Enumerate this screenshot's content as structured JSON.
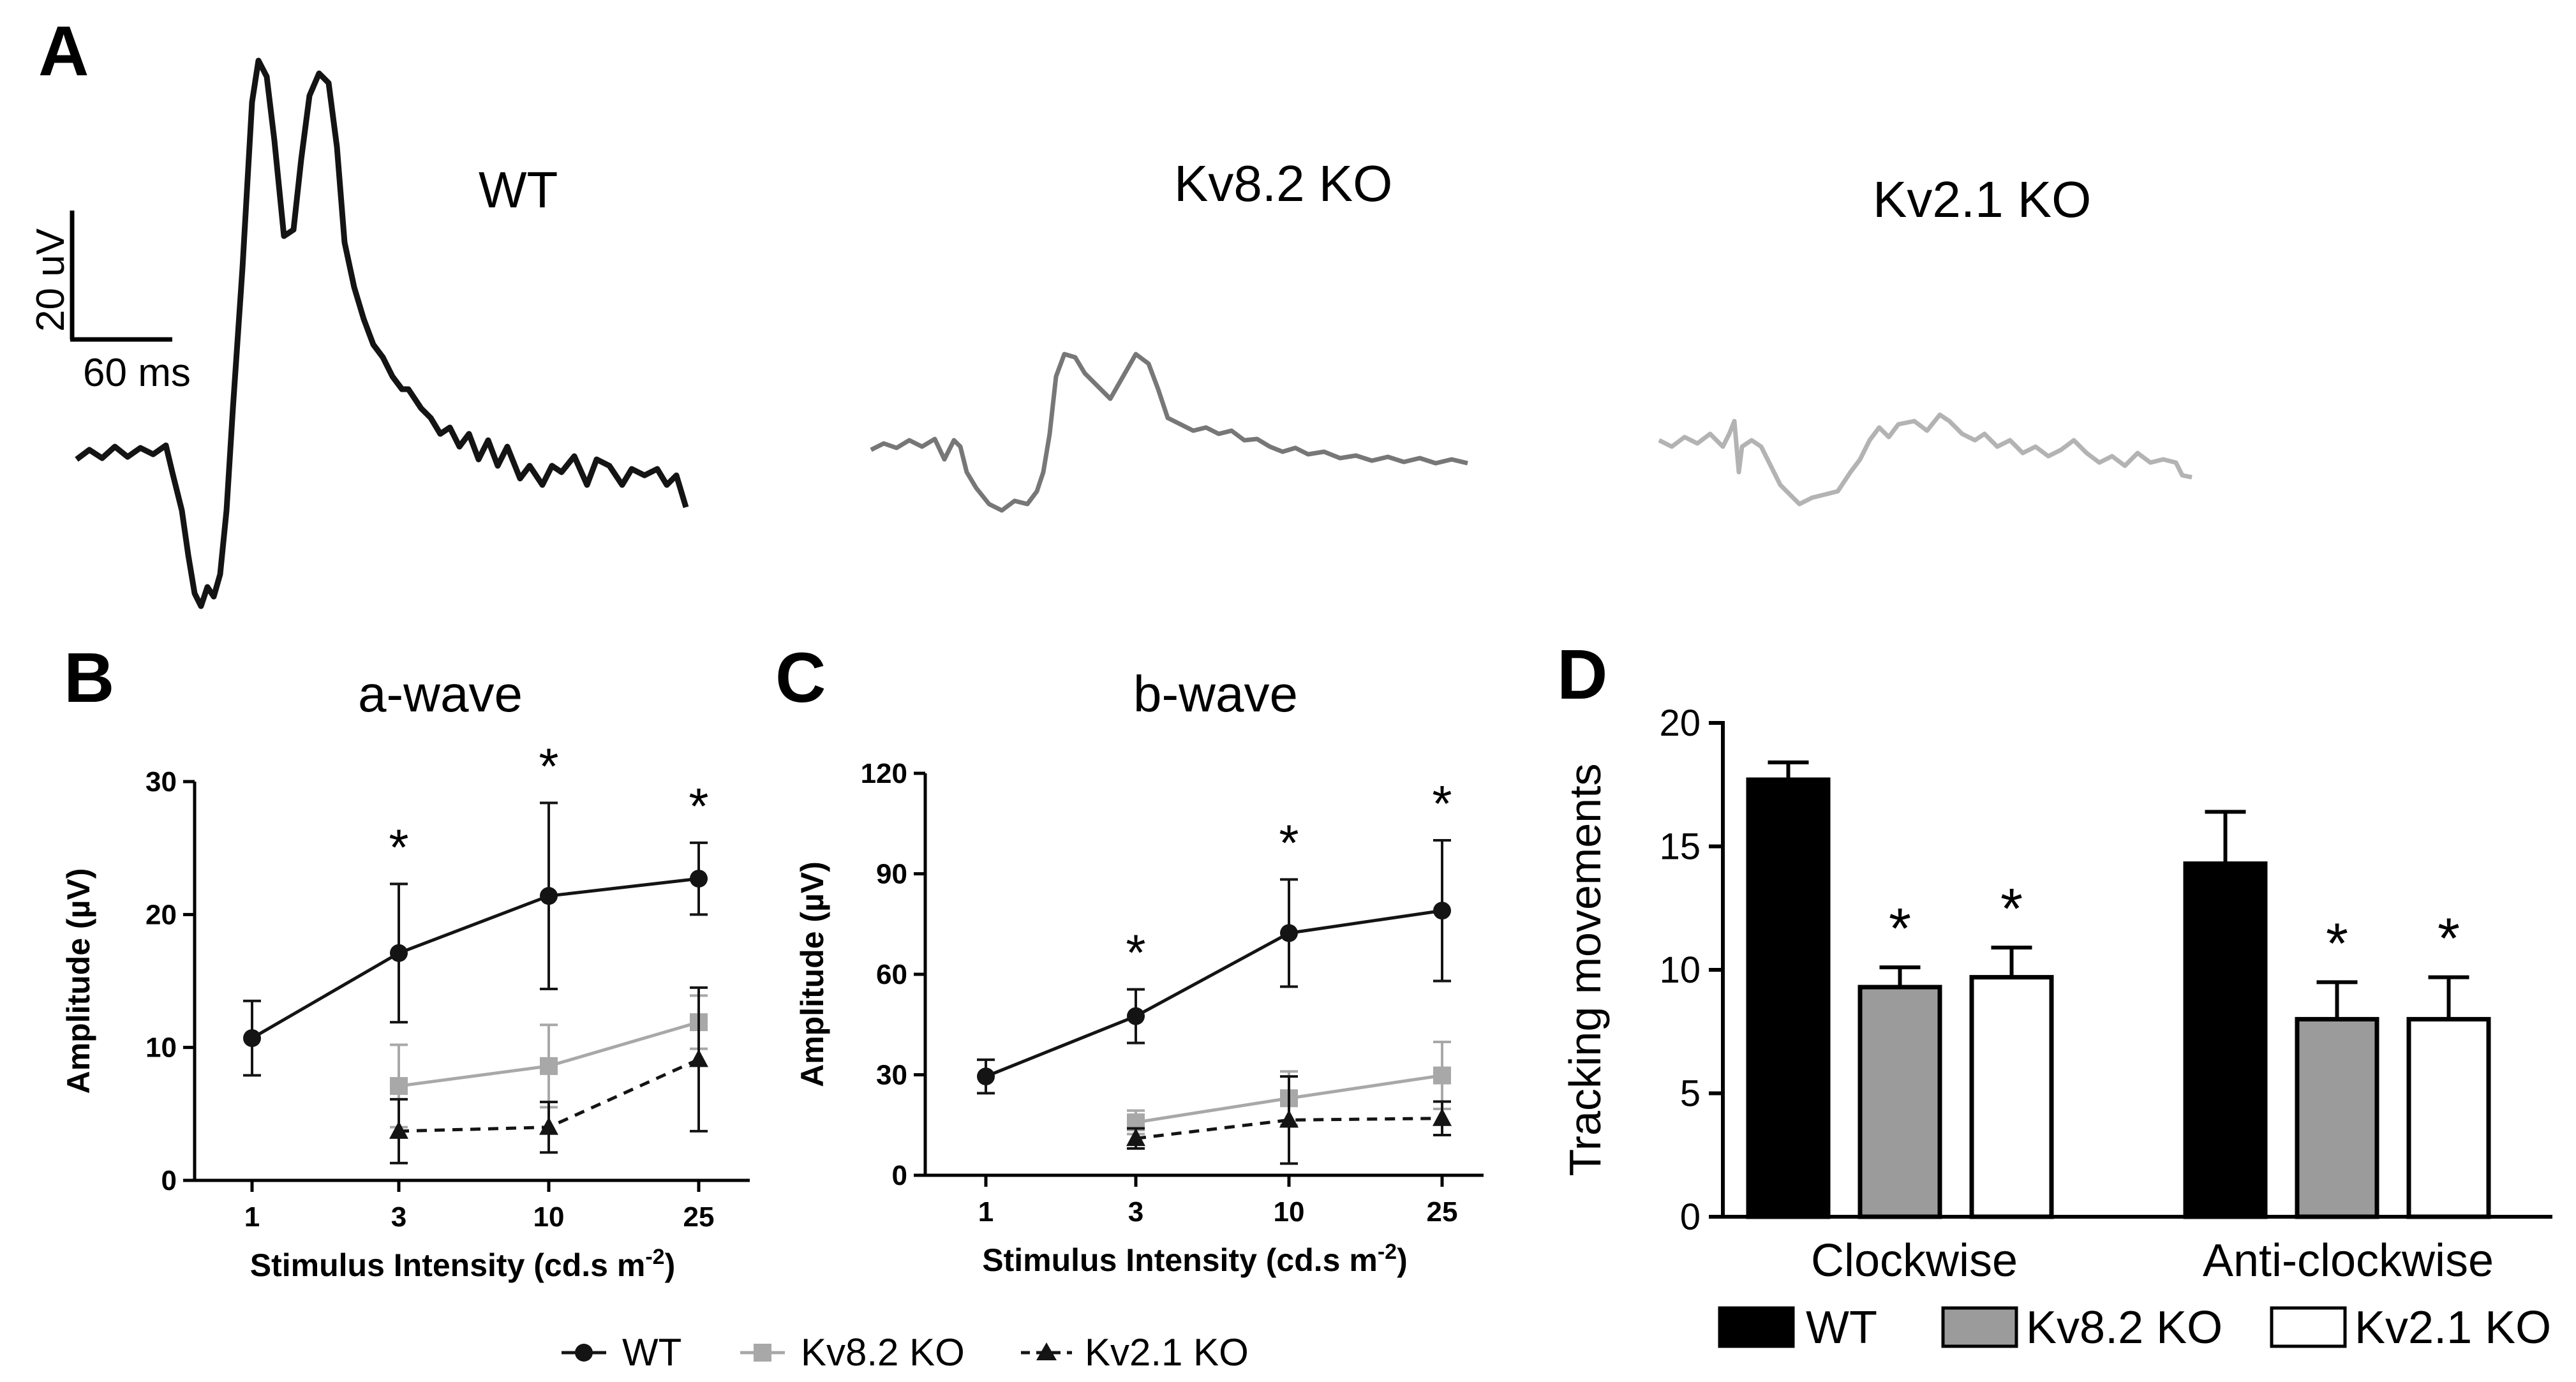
{
  "panel_labels": {
    "a": "A",
    "b": "B",
    "c": "C",
    "d": "D"
  },
  "colors": {
    "wt": "#141414",
    "kv82": "#a8a8a8",
    "kv21": "#141414",
    "ercg_kv82": "#777777",
    "ercg_kv21": "#b3b3b3",
    "bar_wt": "#000000",
    "bar_kv82": "#9b9b9b",
    "bar_kv21": "#ffffff"
  },
  "traces": {
    "scale_y_label": "20 uV",
    "scale_x_label": "60 ms",
    "wt_label": "WT",
    "kv82_label": "Kv8.2 KO",
    "kv21_label": "Kv2.1 KO"
  },
  "legend": {
    "wt": "WT",
    "kv82": "Kv8.2 KO",
    "kv21": "Kv2.1 KO"
  },
  "chart_data": [
    {
      "id": "a-wave",
      "type": "line",
      "title": "a-wave",
      "xlabel": "Stimulus Intensity (cd.s m",
      "xlabel_sup": "-2",
      "xlabel_end": ")",
      "ylabel": "Amplitude (µV)",
      "categories": [
        "1",
        "3",
        "10",
        "25"
      ],
      "yticks": [
        "0",
        "10",
        "20",
        "30"
      ],
      "ylim": [
        0,
        30
      ],
      "series": [
        {
          "name": "WT",
          "values": [
            10.7,
            17.1,
            21.4,
            22.7
          ],
          "errors": [
            2.8,
            5.2,
            7.0,
            2.7
          ]
        },
        {
          "name": "Kv8.2 KO",
          "values": [
            null,
            7.1,
            8.6,
            11.9
          ],
          "errors": [
            null,
            3.1,
            3.1,
            2.0
          ]
        },
        {
          "name": "Kv2.1 KO",
          "values": [
            null,
            3.7,
            4.0,
            9.1
          ],
          "errors": [
            null,
            2.4,
            1.9,
            5.4
          ]
        }
      ],
      "significance": [
        {
          "index": 1,
          "label": "*"
        },
        {
          "index": 2,
          "label": "*"
        },
        {
          "index": 3,
          "label": "*"
        }
      ]
    },
    {
      "id": "b-wave",
      "type": "line",
      "title": "b-wave",
      "xlabel": "Stimulus Intensity (cd.s m",
      "xlabel_sup": "-2",
      "xlabel_end": ")",
      "ylabel": "Amplitude (µV)",
      "categories": [
        "1",
        "3",
        "10",
        "25"
      ],
      "yticks": [
        "0",
        "30",
        "60",
        "90",
        "120"
      ],
      "ylim": [
        0,
        120
      ],
      "series": [
        {
          "name": "WT",
          "values": [
            29.5,
            47.5,
            72.3,
            79.0
          ],
          "errors": [
            5.0,
            8.0,
            16.0,
            21.0
          ]
        },
        {
          "name": "Kv8.2 KO",
          "values": [
            null,
            15.8,
            23.0,
            29.8
          ],
          "errors": [
            null,
            3.5,
            8.0,
            10.0
          ]
        },
        {
          "name": "Kv2.1 KO",
          "values": [
            null,
            11.0,
            16.5,
            17.0
          ],
          "errors": [
            null,
            3.0,
            13.0,
            5.0
          ]
        }
      ],
      "significance": [
        {
          "index": 1,
          "label": "*"
        },
        {
          "index": 2,
          "label": "*"
        },
        {
          "index": 3,
          "label": "*"
        }
      ]
    },
    {
      "id": "tracking",
      "type": "bar",
      "ylabel": "Tracking movements",
      "categories": [
        "Clockwise",
        "Anti-clockwise"
      ],
      "yticks": [
        "0",
        "5",
        "10",
        "15",
        "20"
      ],
      "ylim": [
        0,
        20
      ],
      "series": [
        {
          "name": "WT",
          "values": [
            17.7,
            14.3
          ],
          "errors": [
            0.7,
            2.1
          ]
        },
        {
          "name": "Kv8.2 KO",
          "values": [
            9.3,
            8.0
          ],
          "errors": [
            0.8,
            1.5
          ]
        },
        {
          "name": "Kv2.1 KO",
          "values": [
            9.7,
            8.0
          ],
          "errors": [
            1.2,
            1.7
          ]
        }
      ],
      "significance": [
        {
          "category": 0,
          "series": 1,
          "label": "*"
        },
        {
          "category": 0,
          "series": 2,
          "label": "*"
        },
        {
          "category": 1,
          "series": 1,
          "label": "*"
        },
        {
          "category": 1,
          "series": 2,
          "label": "*"
        }
      ]
    }
  ]
}
